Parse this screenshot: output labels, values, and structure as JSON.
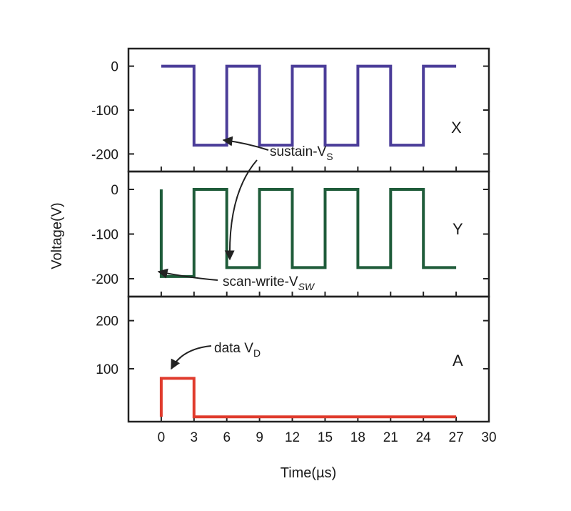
{
  "chart_data": {
    "type": "line",
    "xlabel": "Time(µs)",
    "ylabel": "Voltage(V)",
    "xlim": [
      -3,
      30
    ],
    "x_ticks": [
      0,
      3,
      6,
      9,
      12,
      15,
      18,
      21,
      24,
      27,
      30
    ],
    "panels": [
      {
        "label": "X",
        "ylim": [
          -240,
          40
        ],
        "y_ticks": [
          0,
          -100,
          -200
        ],
        "color": "#4b3d99",
        "series": {
          "x": [
            0,
            3,
            3,
            6,
            6,
            9,
            9,
            12,
            12,
            15,
            15,
            18,
            18,
            21,
            21,
            24,
            24,
            27
          ],
          "y": [
            0,
            0,
            -180,
            -180,
            0,
            0,
            -180,
            -180,
            0,
            0,
            -180,
            -180,
            0,
            0,
            -180,
            -180,
            0,
            0
          ]
        }
      },
      {
        "label": "Y",
        "ylim": [
          -240,
          40
        ],
        "y_ticks": [
          0,
          -100,
          -200
        ],
        "color": "#1f5c3a",
        "series": {
          "x": [
            0,
            0,
            3,
            3,
            6,
            6,
            9,
            9,
            12,
            12,
            15,
            15,
            18,
            18,
            21,
            21,
            24,
            24,
            27
          ],
          "y": [
            0,
            -195,
            -195,
            0,
            0,
            -175,
            -175,
            0,
            0,
            -175,
            -175,
            0,
            0,
            -175,
            -175,
            0,
            0,
            -175,
            -175
          ]
        }
      },
      {
        "label": "A",
        "ylim": [
          -10,
          250
        ],
        "y_ticks": [
          200,
          100
        ],
        "color": "#e03b2d",
        "series": {
          "x": [
            0,
            0,
            3,
            3,
            27
          ],
          "y": [
            0,
            80,
            80,
            0,
            0
          ]
        }
      }
    ],
    "annotations": [
      {
        "text": "sustain-V",
        "sub": "S"
      },
      {
        "text": "scan-write-V",
        "sub": "SW"
      },
      {
        "text": "data V",
        "sub": "D"
      }
    ]
  }
}
